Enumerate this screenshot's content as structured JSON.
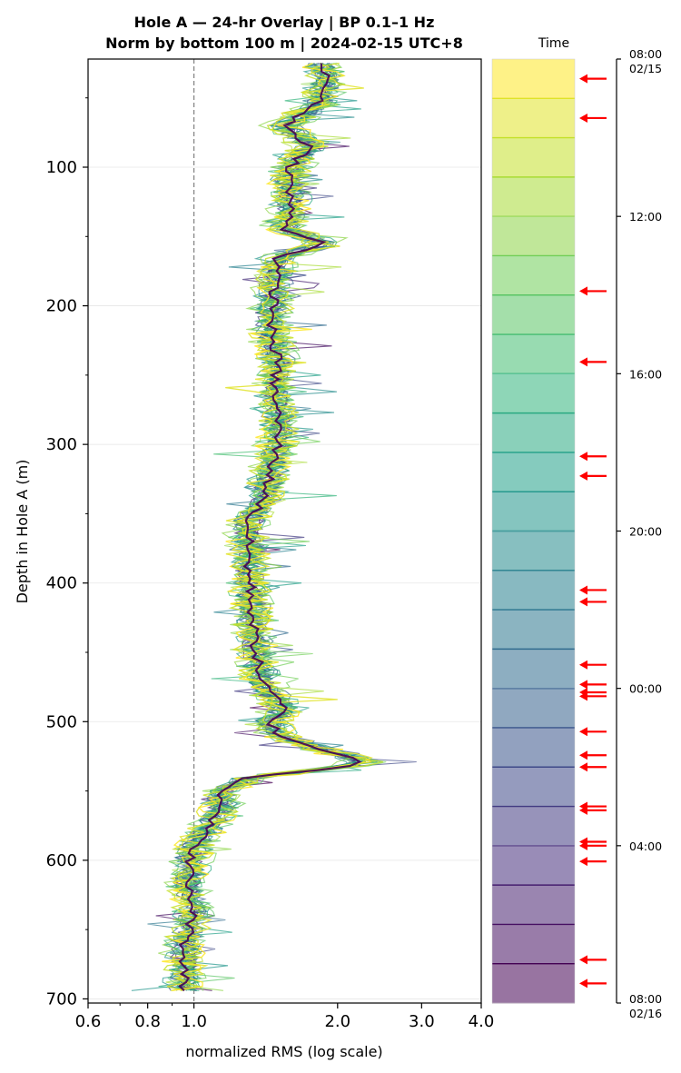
{
  "chart_data": {
    "type": "line",
    "title_line1": "Hole A — 24-hr Overlay  |  BP 0.1–1 Hz",
    "title_line2": "Norm by bottom 100 m  |  2024-02-15 UTC+8",
    "xlabel": "normalized RMS  (log scale)",
    "ylabel": "Depth in Hole A (m)",
    "x_scale": "log",
    "xlim": [
      0.6,
      4.0
    ],
    "ylim": [
      703,
      22
    ],
    "x_ticks": [
      {
        "value": 0.6,
        "label": "0.6"
      },
      {
        "value": 0.8,
        "label": "0.8"
      },
      {
        "value": 1.0,
        "label": "1.0"
      },
      {
        "value": 2.0,
        "label": "2.0"
      },
      {
        "value": 3.0,
        "label": "3.0"
      },
      {
        "value": 4.0,
        "label": "4.0"
      }
    ],
    "y_ticks": [
      {
        "value": 100,
        "label": "100"
      },
      {
        "value": 200,
        "label": "200"
      },
      {
        "value": 300,
        "label": "300"
      },
      {
        "value": 400,
        "label": "400"
      },
      {
        "value": 500,
        "label": "500"
      },
      {
        "value": 600,
        "label": "600"
      },
      {
        "value": 700,
        "label": "700"
      }
    ],
    "reference_line_x": 1.0,
    "grid": "horizontal",
    "series_count": 24,
    "profile_depths": [
      25,
      40,
      55,
      70,
      85,
      100,
      115,
      130,
      145,
      155,
      165,
      180,
      200,
      220,
      240,
      260,
      280,
      300,
      320,
      340,
      355,
      370,
      390,
      410,
      430,
      450,
      470,
      480,
      490,
      500,
      510,
      520,
      530,
      540,
      550,
      560,
      575,
      590,
      605,
      620,
      635,
      650,
      665,
      680,
      695
    ],
    "median_profile": [
      1.85,
      1.9,
      1.8,
      1.55,
      1.75,
      1.6,
      1.58,
      1.6,
      1.55,
      1.9,
      1.5,
      1.48,
      1.47,
      1.45,
      1.5,
      1.47,
      1.5,
      1.5,
      1.45,
      1.4,
      1.3,
      1.3,
      1.3,
      1.32,
      1.33,
      1.35,
      1.38,
      1.45,
      1.55,
      1.45,
      1.5,
      1.85,
      2.3,
      1.3,
      1.15,
      1.15,
      1.08,
      1.0,
      0.98,
      0.97,
      1.0,
      0.98,
      0.95,
      0.96,
      0.95
    ],
    "colorbar": {
      "label": "Time",
      "start": "08:00",
      "start_date": "02/15",
      "end": "08:00",
      "end_date": "02/16",
      "ticks": [
        "08:00",
        "12:00",
        "16:00",
        "20:00",
        "00:00",
        "04:00",
        "08:00"
      ],
      "band_count": 24,
      "color_start": "#fde725",
      "color_end": "#440154"
    },
    "event_markers_hours": [
      0.5,
      1.5,
      5.9,
      7.7,
      10.1,
      10.6,
      13.5,
      13.8,
      15.4,
      15.9,
      16.1,
      16.2,
      17.1,
      17.7,
      18.0,
      19.0,
      19.1,
      19.9,
      20.0,
      20.4,
      22.9,
      23.5
    ],
    "marker_color": "#ff0000"
  }
}
